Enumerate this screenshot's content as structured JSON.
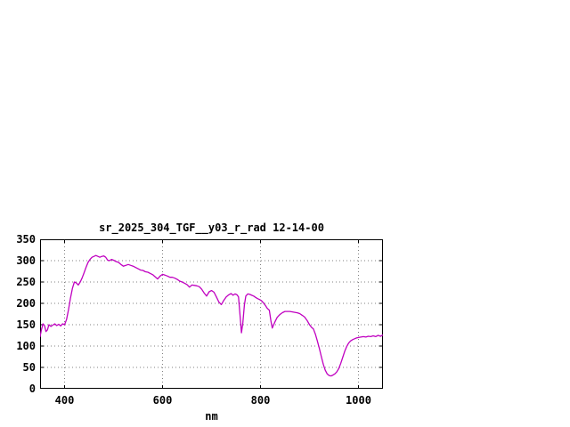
{
  "page": {
    "background_color": "#ffffff",
    "text_color": "#000000"
  },
  "chart_data": {
    "type": "line",
    "title": "sr_2025_304_TGF__y03_r_rad 12-14-00",
    "xlabel": "nm",
    "ylabel": "",
    "xlim": [
      350,
      1050
    ],
    "ylim": [
      0,
      350
    ],
    "xticks": [
      400,
      600,
      800,
      1000
    ],
    "yticks": [
      0,
      50,
      100,
      150,
      200,
      250,
      300,
      350
    ],
    "grid": true,
    "grid_style": "dotted",
    "grid_color": "#808080",
    "legend_position": "none",
    "line_color": "#c000c0",
    "series": [
      {
        "name": "sr_2025_304_TGF__y03_r_rad",
        "points": [
          [
            350,
            122
          ],
          [
            353,
            140
          ],
          [
            356,
            152
          ],
          [
            359,
            148
          ],
          [
            362,
            134
          ],
          [
            365,
            138
          ],
          [
            368,
            150
          ],
          [
            372,
            146
          ],
          [
            376,
            149
          ],
          [
            380,
            152
          ],
          [
            384,
            148
          ],
          [
            388,
            151
          ],
          [
            392,
            147
          ],
          [
            396,
            152
          ],
          [
            400,
            150
          ],
          [
            404,
            162
          ],
          [
            408,
            185
          ],
          [
            412,
            212
          ],
          [
            416,
            235
          ],
          [
            420,
            250
          ],
          [
            424,
            248
          ],
          [
            428,
            243
          ],
          [
            432,
            250
          ],
          [
            436,
            260
          ],
          [
            440,
            272
          ],
          [
            444,
            285
          ],
          [
            448,
            296
          ],
          [
            452,
            303
          ],
          [
            456,
            308
          ],
          [
            460,
            310
          ],
          [
            464,
            312
          ],
          [
            468,
            310
          ],
          [
            472,
            308
          ],
          [
            476,
            310
          ],
          [
            480,
            311
          ],
          [
            484,
            308
          ],
          [
            488,
            301
          ],
          [
            492,
            300
          ],
          [
            496,
            303
          ],
          [
            500,
            301
          ],
          [
            505,
            298
          ],
          [
            510,
            296
          ],
          [
            515,
            291
          ],
          [
            520,
            287
          ],
          [
            525,
            289
          ],
          [
            530,
            291
          ],
          [
            535,
            289
          ],
          [
            540,
            287
          ],
          [
            545,
            284
          ],
          [
            550,
            281
          ],
          [
            555,
            278
          ],
          [
            560,
            277
          ],
          [
            565,
            274
          ],
          [
            570,
            273
          ],
          [
            575,
            270
          ],
          [
            580,
            267
          ],
          [
            585,
            262
          ],
          [
            590,
            257
          ],
          [
            595,
            264
          ],
          [
            600,
            268
          ],
          [
            605,
            266
          ],
          [
            610,
            264
          ],
          [
            615,
            261
          ],
          [
            620,
            261
          ],
          [
            625,
            259
          ],
          [
            630,
            256
          ],
          [
            635,
            252
          ],
          [
            640,
            250
          ],
          [
            645,
            247
          ],
          [
            650,
            244
          ],
          [
            655,
            238
          ],
          [
            660,
            243
          ],
          [
            665,
            242
          ],
          [
            670,
            241
          ],
          [
            675,
            239
          ],
          [
            680,
            233
          ],
          [
            685,
            224
          ],
          [
            690,
            217
          ],
          [
            695,
            227
          ],
          [
            700,
            230
          ],
          [
            705,
            226
          ],
          [
            710,
            215
          ],
          [
            715,
            203
          ],
          [
            720,
            197
          ],
          [
            725,
            207
          ],
          [
            730,
            215
          ],
          [
            735,
            220
          ],
          [
            740,
            223
          ],
          [
            744,
            219
          ],
          [
            748,
            222
          ],
          [
            752,
            220
          ],
          [
            755,
            215
          ],
          [
            758,
            175
          ],
          [
            761,
            131
          ],
          [
            764,
            155
          ],
          [
            767,
            196
          ],
          [
            770,
            217
          ],
          [
            774,
            222
          ],
          [
            778,
            221
          ],
          [
            782,
            219
          ],
          [
            786,
            217
          ],
          [
            790,
            214
          ],
          [
            794,
            211
          ],
          [
            798,
            209
          ],
          [
            802,
            206
          ],
          [
            806,
            201
          ],
          [
            810,
            195
          ],
          [
            814,
            188
          ],
          [
            818,
            184
          ],
          [
            821,
            160
          ],
          [
            824,
            142
          ],
          [
            827,
            150
          ],
          [
            830,
            158
          ],
          [
            834,
            167
          ],
          [
            838,
            172
          ],
          [
            842,
            176
          ],
          [
            846,
            179
          ],
          [
            850,
            181
          ],
          [
            855,
            181
          ],
          [
            860,
            181
          ],
          [
            865,
            180
          ],
          [
            870,
            179
          ],
          [
            875,
            178
          ],
          [
            880,
            176
          ],
          [
            885,
            172
          ],
          [
            890,
            168
          ],
          [
            895,
            160
          ],
          [
            900,
            150
          ],
          [
            904,
            144
          ],
          [
            908,
            140
          ],
          [
            912,
            128
          ],
          [
            916,
            112
          ],
          [
            920,
            95
          ],
          [
            924,
            76
          ],
          [
            928,
            58
          ],
          [
            932,
            44
          ],
          [
            936,
            35
          ],
          [
            940,
            31
          ],
          [
            944,
            30
          ],
          [
            948,
            32
          ],
          [
            952,
            35
          ],
          [
            956,
            40
          ],
          [
            960,
            48
          ],
          [
            964,
            60
          ],
          [
            968,
            74
          ],
          [
            972,
            88
          ],
          [
            976,
            99
          ],
          [
            980,
            107
          ],
          [
            984,
            112
          ],
          [
            988,
            115
          ],
          [
            992,
            117
          ],
          [
            996,
            119
          ],
          [
            1000,
            120
          ],
          [
            1005,
            121
          ],
          [
            1010,
            122
          ],
          [
            1015,
            121
          ],
          [
            1020,
            123
          ],
          [
            1025,
            122
          ],
          [
            1030,
            124
          ],
          [
            1035,
            122
          ],
          [
            1040,
            125
          ],
          [
            1045,
            123
          ],
          [
            1050,
            126
          ]
        ]
      }
    ]
  }
}
